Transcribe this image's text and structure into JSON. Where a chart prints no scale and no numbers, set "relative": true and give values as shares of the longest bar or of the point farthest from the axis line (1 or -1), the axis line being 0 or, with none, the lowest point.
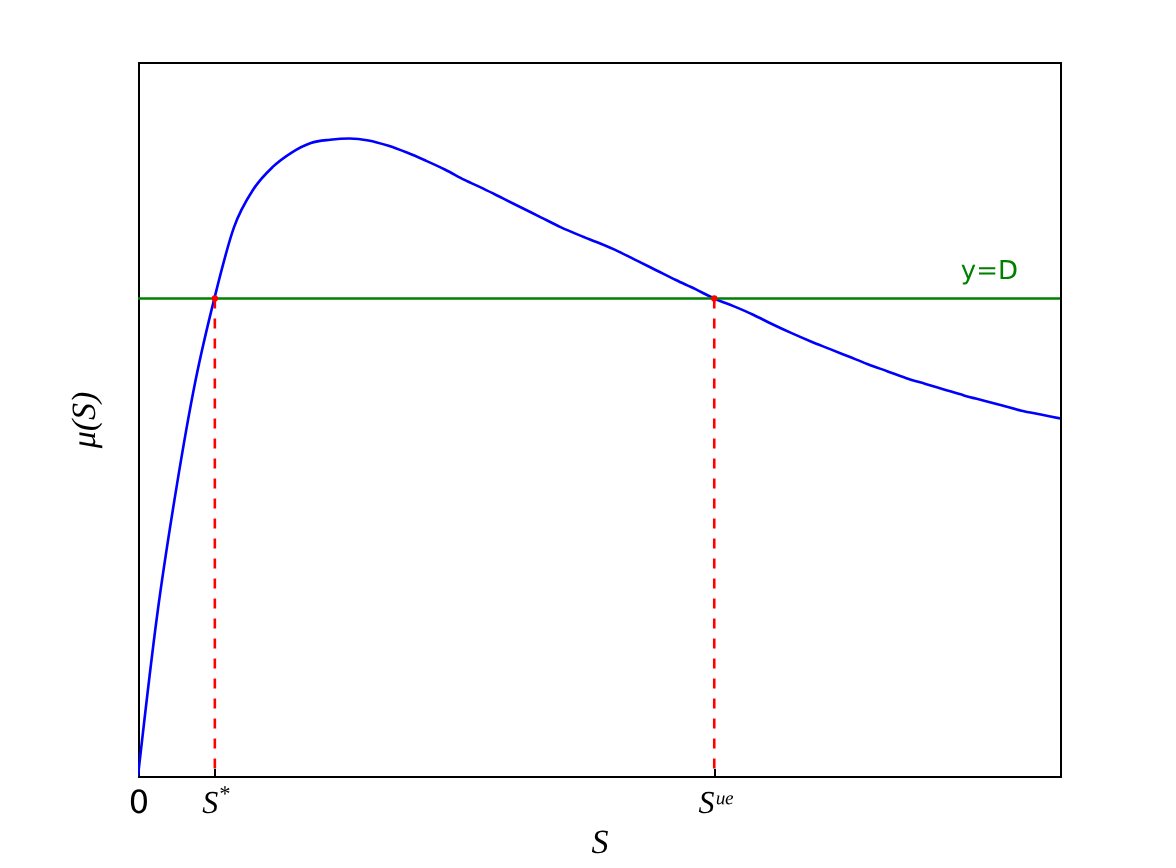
{
  "chart_data": {
    "type": "line",
    "xlabel": "S",
    "ylabel": "μ(S)",
    "relative": true,
    "tick_labels": "x",
    "categories": [
      "0",
      null,
      null,
      null,
      "S$^{*}$",
      null,
      null,
      null,
      null,
      null,
      null,
      null,
      null,
      null,
      null,
      null,
      null,
      null,
      null,
      null,
      null,
      null,
      null,
      null,
      null,
      null,
      null,
      null,
      null,
      null,
      "Sᵘᵉ",
      null,
      null,
      null,
      null,
      null,
      null,
      null,
      null,
      null,
      null,
      null,
      null,
      null,
      null,
      null,
      null,
      null,
      null
    ],
    "series": [
      {
        "color": "#0000ff",
        "values": [
          0,
          0.253,
          0.452,
          0.621,
          0.752,
          0.861,
          0.92,
          0.955,
          0.978,
          0.993,
          0.998,
          1,
          0.997,
          0.989,
          0.978,
          0.965,
          0.951,
          0.935,
          0.921,
          0.906,
          0.891,
          0.876,
          0.861,
          0.848,
          0.836,
          0.823,
          0.808,
          0.793,
          0.778,
          0.764,
          0.749,
          0.737,
          0.724,
          0.709,
          0.695,
          0.682,
          0.67,
          0.658,
          0.646,
          0.635,
          0.624,
          0.615,
          0.606,
          0.597,
          0.589,
          0.581,
          0.573,
          0.567,
          0.561
        ]
      },
      {
        "type": "lollipop",
        "color": "#ff0000",
        "line_style": "dashed",
        "marker": "circle",
        "values": [
          null,
          null,
          null,
          null,
          0.749,
          null,
          null,
          null,
          null,
          null,
          null,
          null,
          null,
          null,
          null,
          null,
          null,
          null,
          null,
          null,
          null,
          null,
          null,
          null,
          null,
          null,
          null,
          null,
          null,
          null,
          0.749,
          null,
          null,
          null,
          null,
          null,
          null,
          null,
          null,
          null,
          null,
          null,
          null,
          null,
          null,
          null,
          null,
          null,
          null
        ]
      }
    ],
    "ref_lines": [
      {
        "axis": "y",
        "value": 0.749,
        "label": "y=D",
        "color": "#008000"
      }
    ]
  }
}
